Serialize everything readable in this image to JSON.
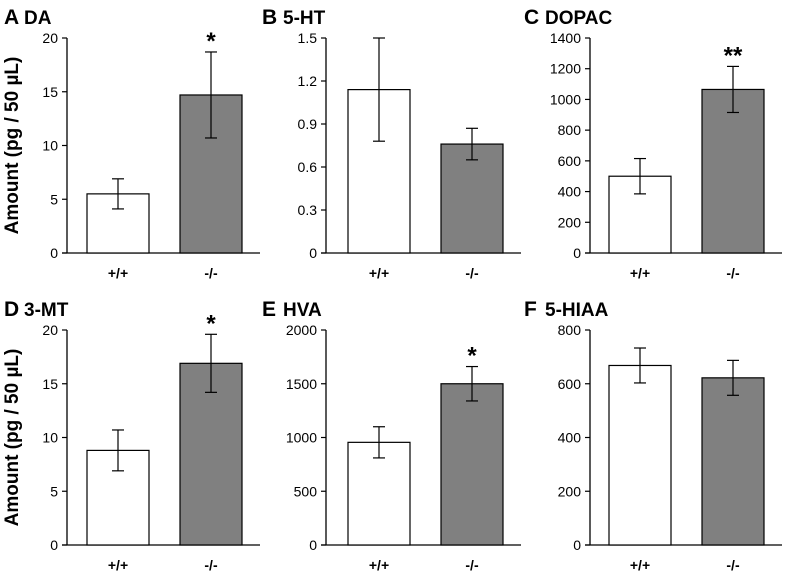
{
  "chart_data": [
    {
      "type": "bar",
      "panel": "A",
      "title": "DA",
      "ylabel": "Amount (pg / 50 µL)",
      "categories": [
        "+/+",
        "-/-"
      ],
      "values": [
        5.5,
        14.7
      ],
      "errors": [
        1.4,
        4.0
      ],
      "ylim": [
        0,
        20
      ],
      "yticks": [
        0,
        5,
        10,
        15,
        20
      ],
      "significance": [
        "",
        "*"
      ],
      "colors": [
        "#ffffff",
        "#808080"
      ]
    },
    {
      "type": "bar",
      "panel": "B",
      "title": "5-HT",
      "ylabel": "",
      "categories": [
        "+/+",
        "-/-"
      ],
      "values": [
        1.14,
        0.76
      ],
      "errors": [
        0.36,
        0.11
      ],
      "ylim": [
        0,
        1.5
      ],
      "yticks": [
        0,
        0.3,
        0.6,
        0.9,
        1.2,
        1.5
      ],
      "significance": [
        "",
        ""
      ],
      "colors": [
        "#ffffff",
        "#808080"
      ]
    },
    {
      "type": "bar",
      "panel": "C",
      "title": "DOPAC",
      "ylabel": "",
      "categories": [
        "+/+",
        "-/-"
      ],
      "values": [
        500,
        1065
      ],
      "errors": [
        115,
        150
      ],
      "ylim": [
        0,
        1400
      ],
      "yticks": [
        0,
        200,
        400,
        600,
        800,
        1000,
        1200,
        1400
      ],
      "significance": [
        "",
        "**"
      ],
      "colors": [
        "#ffffff",
        "#808080"
      ]
    },
    {
      "type": "bar",
      "panel": "D",
      "title": "3-MT",
      "ylabel": "Amount (pg / 50 µL)",
      "categories": [
        "+/+",
        "-/-"
      ],
      "values": [
        8.8,
        16.9
      ],
      "errors": [
        1.9,
        2.7
      ],
      "ylim": [
        0,
        20
      ],
      "yticks": [
        0,
        5,
        10,
        15,
        20
      ],
      "significance": [
        "",
        "*"
      ],
      "colors": [
        "#ffffff",
        "#808080"
      ]
    },
    {
      "type": "bar",
      "panel": "E",
      "title": "HVA",
      "ylabel": "",
      "categories": [
        "+/+",
        "-/-"
      ],
      "values": [
        955,
        1500
      ],
      "errors": [
        145,
        160
      ],
      "ylim": [
        0,
        2000
      ],
      "yticks": [
        0,
        500,
        1000,
        1500,
        2000
      ],
      "significance": [
        "",
        "*"
      ],
      "colors": [
        "#ffffff",
        "#808080"
      ]
    },
    {
      "type": "bar",
      "panel": "F",
      "title": "5-HIAA",
      "ylabel": "",
      "categories": [
        "+/+",
        "-/-"
      ],
      "values": [
        668,
        622
      ],
      "errors": [
        65,
        65
      ],
      "ylim": [
        0,
        800
      ],
      "yticks": [
        0,
        200,
        400,
        600,
        800
      ],
      "significance": [
        "",
        ""
      ],
      "colors": [
        "#ffffff",
        "#808080"
      ]
    }
  ]
}
